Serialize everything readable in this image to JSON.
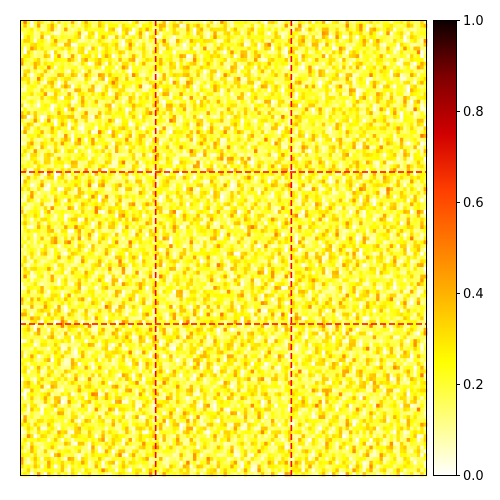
{
  "chart_data": {
    "type": "heatmap",
    "title": "",
    "xlabel": "",
    "ylabel": "",
    "grid_rows": 120,
    "grid_cols": 120,
    "value_range": [
      0.0,
      1.0
    ],
    "typical_cell_range": [
      0.0,
      0.45
    ],
    "dominant_value": 0.2,
    "colormap": "hot_r",
    "axis_ticks_visible": false,
    "block_divider_positions": [
      40,
      80
    ],
    "block_divider_style": "dashed",
    "block_divider_color": "#ff0000",
    "colorbar": {
      "placement": "right",
      "ticks": [
        0.0,
        0.2,
        0.4,
        0.6,
        0.8,
        1.0
      ],
      "tick_labels": [
        "0.0",
        "0.2",
        "0.4",
        "0.6",
        "0.8",
        "1.0"
      ]
    }
  }
}
